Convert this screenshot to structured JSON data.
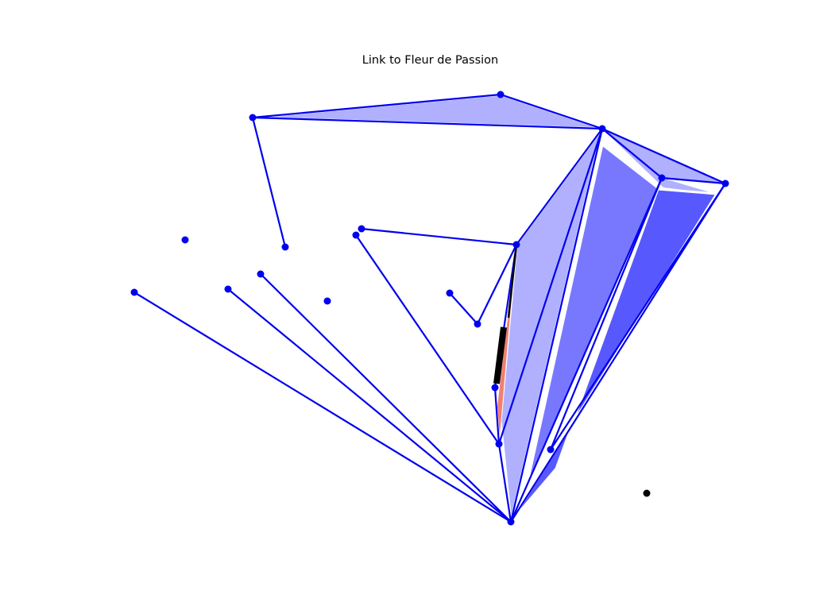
{
  "title": "Link to Fleur de Passion",
  "colors": {
    "node": "#0000ee",
    "edge": "#0000ee",
    "fill_light": "#b0b0ff",
    "fill_mid": "#7878ff",
    "fill_dark": "#5858ff",
    "highlight": "#f08070",
    "highlight_edge": "#000000",
    "external_node": "#000000"
  }
}
